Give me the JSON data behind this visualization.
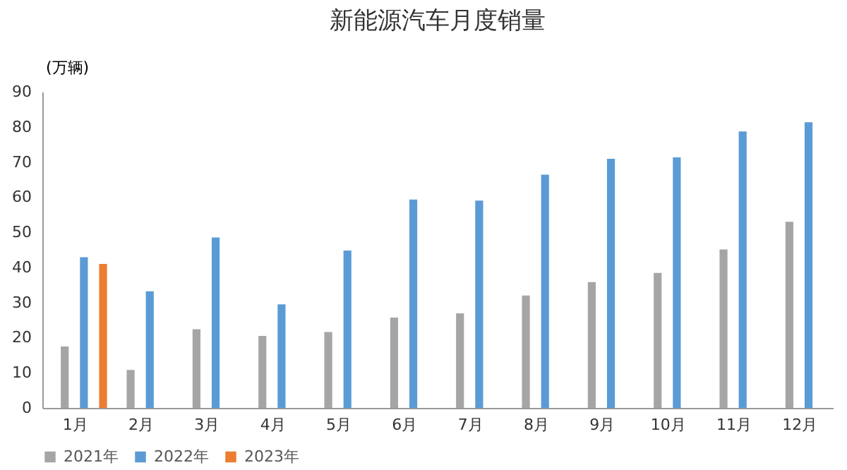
{
  "chart_data": {
    "type": "bar",
    "title": "新能源汽车月度销量",
    "ylabel": "(万辆)",
    "categories": [
      "1月",
      "2月",
      "3月",
      "4月",
      "5月",
      "6月",
      "7月",
      "8月",
      "9月",
      "10月",
      "11月",
      "12月"
    ],
    "series": [
      {
        "name": "2021年",
        "color": "#a5a5a5",
        "values": [
          17.5,
          10.8,
          22.4,
          20.5,
          21.6,
          25.7,
          26.9,
          32,
          35.8,
          38.4,
          45.1,
          53
        ]
      },
      {
        "name": "2022年",
        "color": "#5b9bd5",
        "values": [
          42.9,
          33.2,
          48.5,
          29.5,
          44.8,
          59.3,
          59,
          66.4,
          70.9,
          71.3,
          78.7,
          81.3
        ]
      },
      {
        "name": "2023年",
        "color": "#ed7d31",
        "values": [
          41,
          null,
          null,
          null,
          null,
          null,
          null,
          null,
          null,
          null,
          null,
          null
        ]
      }
    ],
    "ylim": [
      0,
      90
    ],
    "yticks": [
      0,
      10,
      20,
      30,
      40,
      50,
      60,
      70,
      80,
      90
    ],
    "grid": false,
    "legend": "bottom"
  }
}
